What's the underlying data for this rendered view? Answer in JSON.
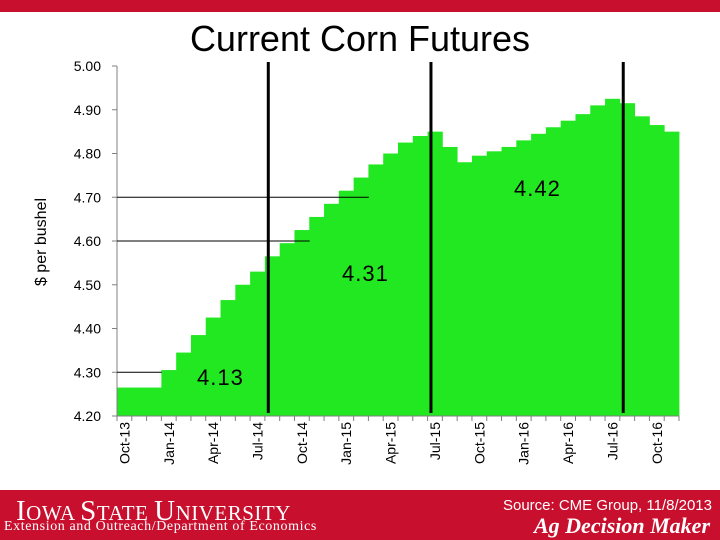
{
  "chart_data": {
    "type": "bar",
    "title": "Current Corn Futures",
    "ylabel": "$ per bushel",
    "ylim": [
      4.2,
      5.0
    ],
    "yticks": [
      "4.20",
      "4.30",
      "4.40",
      "4.50",
      "4.60",
      "4.70",
      "4.80",
      "4.90",
      "5.00"
    ],
    "x_tick_labels": [
      "Oct-13",
      "Jan-14",
      "Apr-14",
      "Jul-14",
      "Oct-14",
      "Jan-15",
      "Apr-15",
      "Jul-15",
      "Oct-15",
      "Jan-16",
      "Apr-16",
      "Jul-16",
      "Oct-16"
    ],
    "categories": [
      "Oct-13",
      "Nov-13",
      "Dec-13",
      "Jan-14",
      "Feb-14",
      "Mar-14",
      "Apr-14",
      "May-14",
      "Jun-14",
      "Jul-14",
      "Aug-14",
      "Sep-14",
      "Oct-14",
      "Nov-14",
      "Dec-14",
      "Jan-15",
      "Feb-15",
      "Mar-15",
      "Apr-15",
      "May-15",
      "Jun-15",
      "Jul-15",
      "Aug-15",
      "Sep-15",
      "Oct-15",
      "Nov-15",
      "Dec-15",
      "Jan-16",
      "Feb-16",
      "Mar-16",
      "Apr-16",
      "May-16",
      "Jun-16",
      "Jul-16",
      "Aug-16",
      "Sep-16",
      "Oct-16",
      "Nov-16"
    ],
    "values": [
      4.265,
      4.265,
      4.265,
      4.305,
      4.345,
      4.385,
      4.425,
      4.465,
      4.5,
      4.53,
      4.565,
      4.595,
      4.625,
      4.655,
      4.685,
      4.715,
      4.745,
      4.775,
      4.8,
      4.825,
      4.84,
      4.85,
      4.815,
      4.78,
      4.795,
      4.805,
      4.815,
      4.83,
      4.845,
      4.86,
      4.875,
      4.89,
      4.91,
      4.925,
      4.915,
      4.885,
      4.865,
      4.85
    ],
    "bar_color": "#22e822",
    "grid": false,
    "vertical_markers": [
      "Aug-14",
      "Jul-15",
      "Aug-16"
    ],
    "annotations": [
      {
        "text": "4.13",
        "y": 4.3,
        "end_category": "Oct-13"
      },
      {
        "text": "4.31",
        "y": 4.6,
        "end_category": "Aug-14"
      },
      {
        "text": "4.42",
        "y": 4.7,
        "end_category": "Dec-14"
      }
    ]
  },
  "footer": {
    "institution_first": "I",
    "institution_rest": "OWA ",
    "institution_state_first": "S",
    "institution_state_rest": "TATE ",
    "institution_univ_first": "U",
    "institution_univ_rest": "NIVERSITY",
    "extension_line": "Extension and Outreach/Department of Economics",
    "source": "Source: CME Group, 11/8/2013",
    "brand": "Ag Decision Maker"
  }
}
